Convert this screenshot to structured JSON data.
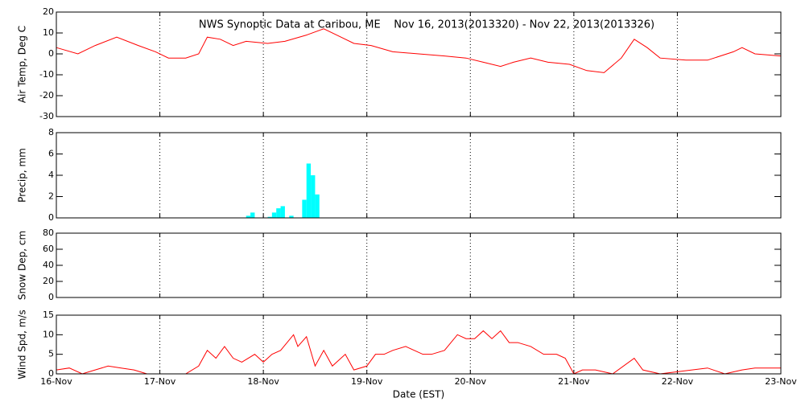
{
  "chart_data": [
    {
      "type": "line",
      "title": "NWS Synoptic Data at Caribou, ME    Nov 16, 2013(2013320) - Nov 22, 2013(2013326)",
      "ylabel": "Air Temp, Deg C",
      "ylim": [
        -30,
        20
      ],
      "yticks": [
        -30,
        -20,
        -10,
        0,
        10,
        20
      ],
      "xlim": [
        0,
        168
      ],
      "grid": "x",
      "x": [
        0,
        5,
        9,
        14,
        19,
        23,
        26,
        30,
        33,
        35,
        38,
        41,
        44,
        49,
        53,
        58,
        62,
        65,
        69,
        73,
        78,
        84,
        90,
        95,
        99,
        103,
        106,
        110,
        114,
        119,
        123,
        127,
        131,
        134,
        137,
        140,
        146,
        151,
        157,
        159,
        162,
        168
      ],
      "series": [
        {
          "name": "Air Temp",
          "color": "#ff0000",
          "values": [
            3,
            0,
            4,
            8,
            4,
            1,
            -2,
            -2,
            0,
            8,
            7,
            4,
            6,
            5,
            6,
            9,
            12,
            9,
            5,
            4,
            1,
            0,
            -1,
            -2,
            -4,
            -6,
            -4,
            -2,
            -4,
            -5,
            -8,
            -9,
            -2,
            7,
            3,
            -2,
            -3,
            -3,
            1,
            3,
            0,
            -1
          ]
        }
      ]
    },
    {
      "type": "bar",
      "ylabel": "Precip, mm",
      "ylim": [
        0,
        8
      ],
      "yticks": [
        0,
        2,
        4,
        6,
        8
      ],
      "xlim": [
        0,
        168
      ],
      "grid": "x",
      "x": [
        44,
        45,
        49,
        50,
        51,
        52,
        54,
        57,
        58,
        59,
        60
      ],
      "series": [
        {
          "name": "Precip",
          "color": "#00ffff",
          "values": [
            0.2,
            0.5,
            0.1,
            0.5,
            0.9,
            1.1,
            0.2,
            1.7,
            5.1,
            4.0,
            2.2
          ]
        }
      ]
    },
    {
      "type": "line",
      "ylabel": "Snow Dep, cm",
      "ylim": [
        0,
        80
      ],
      "yticks": [
        0,
        20,
        40,
        60,
        80
      ],
      "xlim": [
        0,
        168
      ],
      "grid": "x",
      "series": []
    },
    {
      "type": "line",
      "ylabel": "Wind Spd, m/s",
      "xlabel": "Date (EST)",
      "ylim": [
        0,
        15
      ],
      "yticks": [
        0,
        5,
        10,
        15
      ],
      "xlim": [
        0,
        168
      ],
      "grid": "x",
      "xticks": [
        {
          "value": 0,
          "label": "16-Nov"
        },
        {
          "value": 24,
          "label": "17-Nov"
        },
        {
          "value": 48,
          "label": "18-Nov"
        },
        {
          "value": 72,
          "label": "19-Nov"
        },
        {
          "value": 96,
          "label": "20-Nov"
        },
        {
          "value": 120,
          "label": "21-Nov"
        },
        {
          "value": 144,
          "label": "22-Nov"
        },
        {
          "value": 168,
          "label": "23-Nov"
        }
      ],
      "x": [
        0,
        3,
        6,
        9,
        12,
        15,
        18,
        21,
        24,
        27,
        30,
        33,
        35,
        37,
        39,
        41,
        43,
        46,
        48,
        50,
        52,
        55,
        56,
        58,
        60,
        62,
        64,
        67,
        69,
        72,
        74,
        76,
        78,
        81,
        83,
        85,
        87,
        90,
        93,
        95,
        97,
        99,
        101,
        103,
        105,
        107,
        110,
        113,
        116,
        118,
        120,
        122,
        125,
        129,
        134,
        136,
        140,
        151,
        155,
        159,
        162,
        168
      ],
      "series": [
        {
          "name": "Wind Spd",
          "color": "#ff0000",
          "values": [
            1,
            1.5,
            0,
            1,
            2,
            1.5,
            1,
            0,
            0,
            0,
            0,
            2,
            6,
            4,
            7,
            4,
            3,
            5,
            3,
            5,
            6,
            10,
            7,
            9.5,
            2,
            6,
            2,
            5,
            1,
            2,
            5,
            5,
            6,
            7,
            6,
            5,
            5,
            6,
            10,
            9,
            9,
            11,
            9,
            11,
            8,
            8,
            7,
            5,
            5,
            4,
            0,
            1,
            1,
            0,
            4,
            1,
            0,
            1.5,
            0,
            1,
            1.5,
            1.5
          ]
        }
      ]
    }
  ]
}
